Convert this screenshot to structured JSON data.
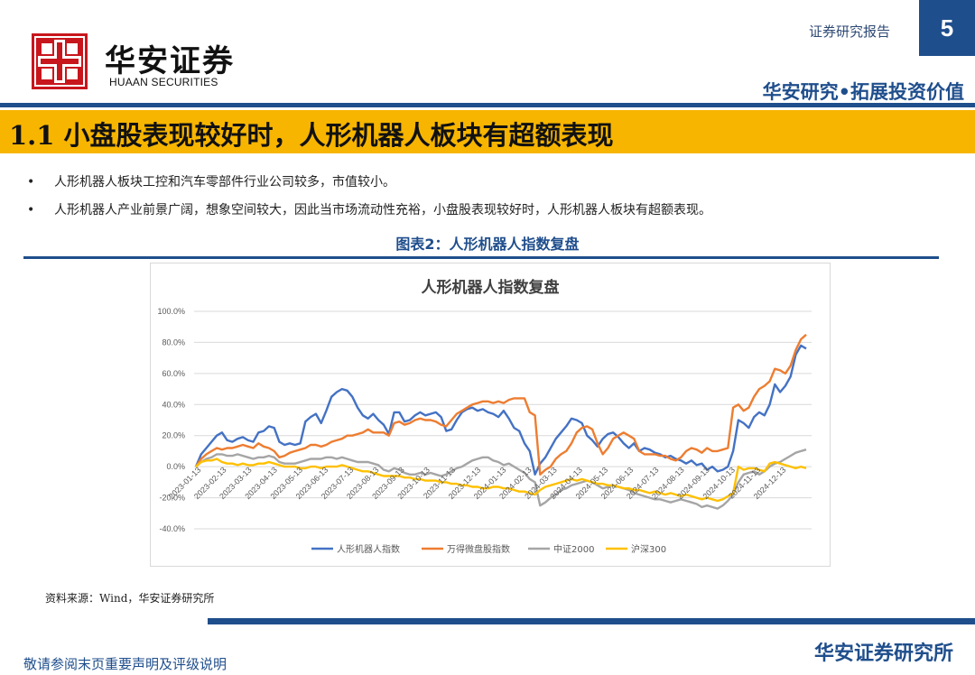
{
  "header": {
    "brand_cn": "华安证券",
    "brand_en": "HUAAN SECURITIES",
    "report_type": "证券研究报告",
    "page_number": "5",
    "slogan": "华安研究•拓展投资价值"
  },
  "section_title": "1.1 小盘股表现较好时，人形机器人板块有超额表现",
  "bullets": [
    "人形机器人板块工控和汽车零部件行业公司较多，市值较小。",
    "人形机器人产业前景广阔，想象空间较大，因此当市场流动性充裕，小盘股表现较好时，人形机器人板块有超额表现。"
  ],
  "bullet_symbol": "•",
  "figure_caption": "图表2：人形机器人指数复盘",
  "source": "资料来源：Wind，华安证券研究所",
  "footer": {
    "disclaimer": "敬请参阅末页重要声明及评级说明",
    "brand": "华安证券研究所"
  },
  "colors": {
    "brand_blue": "#1f4e8c",
    "title_bar_yellow": "#f7b500",
    "logo_red": "#c8161d"
  },
  "chart_data": {
    "type": "line",
    "title": "人形机器人指数复盘",
    "ylim": [
      -40,
      100
    ],
    "y_ticks": [
      "100.0%",
      "80.0%",
      "60.0%",
      "40.0%",
      "20.0%",
      "0.0%",
      "-20.0%",
      "-40.0%"
    ],
    "y_tick_values": [
      100,
      80,
      60,
      40,
      20,
      0,
      -20,
      -40
    ],
    "x_tick_labels": [
      "2023-01-13",
      "2023-02-13",
      "2023-03-13",
      "2023-04-13",
      "2023-05-13",
      "2023-06-13",
      "2023-07-13",
      "2023-08-13",
      "2023-09-13",
      "2023-10-13",
      "2023-11-13",
      "2023-12-13",
      "2024-01-13",
      "2024-02-13",
      "2024-03-13",
      "2024-04-13",
      "2024-05-13",
      "2024-06-13",
      "2024-07-13",
      "2024-08-13",
      "2024-09-13",
      "2024-10-13",
      "2024-11-13",
      "2024-12-13"
    ],
    "grid": true,
    "legend_position": "bottom",
    "series": [
      {
        "name": "人形机器人指数",
        "color": "#4472c4",
        "values": [
          0,
          8,
          12,
          16,
          20,
          22,
          17,
          16,
          18,
          19,
          17,
          16,
          22,
          23,
          26,
          25,
          16,
          14,
          15,
          14,
          15,
          29,
          32,
          34,
          28,
          36,
          45,
          48,
          50,
          49,
          45,
          38,
          33,
          31,
          34,
          30,
          27,
          21,
          35,
          35,
          29,
          30,
          33,
          35,
          33,
          34,
          35,
          32,
          23,
          24,
          30,
          35,
          37,
          38,
          36,
          37,
          35,
          34,
          32,
          36,
          31,
          25,
          23,
          15,
          10,
          -5,
          2,
          6,
          12,
          18,
          22,
          26,
          31,
          30,
          28,
          20,
          17,
          13,
          18,
          21,
          22,
          19,
          15,
          12,
          15,
          10,
          12,
          11,
          9,
          8,
          6,
          7,
          5,
          4,
          2,
          4,
          1,
          2,
          -2,
          0,
          -3,
          -2,
          0,
          10,
          30,
          28,
          25,
          32,
          35,
          33,
          40,
          53,
          48,
          52,
          58,
          72,
          78,
          76
        ]
      },
      {
        "name": "万得微盘股指数",
        "color": "#ed7d31",
        "values": [
          0,
          5,
          8,
          10,
          12,
          11,
          12,
          12,
          13,
          14,
          13,
          12,
          15,
          13,
          12,
          10,
          6,
          7,
          9,
          10,
          11,
          12,
          14,
          14,
          13,
          14,
          16,
          17,
          18,
          20,
          20,
          21,
          22,
          24,
          22,
          22,
          22,
          20,
          28,
          29,
          27,
          28,
          30,
          31,
          30,
          30,
          29,
          27,
          26,
          30,
          34,
          36,
          38,
          40,
          41,
          42,
          42,
          41,
          42,
          41,
          43,
          44,
          44,
          44,
          35,
          33,
          -5,
          -2,
          0,
          5,
          8,
          10,
          15,
          22,
          25,
          26,
          24,
          15,
          8,
          12,
          18,
          20,
          22,
          20,
          18,
          10,
          8,
          8,
          8,
          7,
          7,
          5,
          4,
          6,
          10,
          12,
          11,
          9,
          12,
          10,
          10,
          11,
          12,
          38,
          40,
          36,
          38,
          45,
          50,
          52,
          55,
          63,
          62,
          60,
          65,
          75,
          82,
          85
        ]
      },
      {
        "name": "中证2000",
        "color": "#a5a5a5",
        "values": [
          0,
          3,
          5,
          6,
          8,
          8,
          7,
          7,
          8,
          7,
          6,
          5,
          6,
          6,
          7,
          6,
          3,
          2,
          2,
          2,
          3,
          4,
          5,
          5,
          5,
          6,
          6,
          5,
          6,
          5,
          4,
          3,
          3,
          3,
          2,
          1,
          -2,
          -3,
          -1,
          -2,
          -4,
          -5,
          -5,
          -4,
          -5,
          -4,
          -5,
          -6,
          -5,
          -3,
          -1,
          0,
          2,
          4,
          5,
          6,
          6,
          4,
          3,
          1,
          2,
          0,
          -2,
          -4,
          -8,
          -10,
          -25,
          -23,
          -20,
          -18,
          -15,
          -14,
          -12,
          -11,
          -10,
          -9,
          -10,
          -12,
          -14,
          -13,
          -12,
          -13,
          -14,
          -15,
          -17,
          -18,
          -19,
          -20,
          -21,
          -21,
          -22,
          -23,
          -22,
          -21,
          -22,
          -23,
          -24,
          -26,
          -25,
          -26,
          -27,
          -25,
          -22,
          -18,
          -10,
          -5,
          -4,
          -3,
          -5,
          -3,
          0,
          2,
          3,
          5,
          7,
          9,
          10,
          11
        ]
      },
      {
        "name": "沪深300",
        "color": "#ffc000",
        "values": [
          0,
          3,
          4,
          4,
          5,
          3,
          2,
          2,
          1,
          2,
          1,
          1,
          2,
          2,
          3,
          2,
          1,
          0,
          0,
          0,
          -1,
          -1,
          0,
          0,
          -1,
          0,
          0,
          0,
          1,
          0,
          -1,
          -2,
          -3,
          -3,
          -4,
          -5,
          -6,
          -6,
          -6,
          -6,
          -7,
          -7,
          -8,
          -8,
          -9,
          -9,
          -9,
          -10,
          -10,
          -11,
          -11,
          -12,
          -12,
          -13,
          -13,
          -14,
          -14,
          -13,
          -13,
          -14,
          -14,
          -15,
          -16,
          -16,
          -17,
          -18,
          -15,
          -13,
          -12,
          -11,
          -10,
          -9,
          -8,
          -9,
          -8,
          -9,
          -10,
          -11,
          -11,
          -12,
          -12,
          -13,
          -14,
          -14,
          -15,
          -15,
          -16,
          -17,
          -16,
          -17,
          -18,
          -17,
          -18,
          -19,
          -18,
          -19,
          -20,
          -21,
          -20,
          -21,
          -22,
          -21,
          -19,
          -17,
          0,
          -2,
          -1,
          -1,
          -2,
          -3,
          2,
          3,
          2,
          1,
          0,
          -1,
          0,
          -1
        ]
      }
    ]
  }
}
